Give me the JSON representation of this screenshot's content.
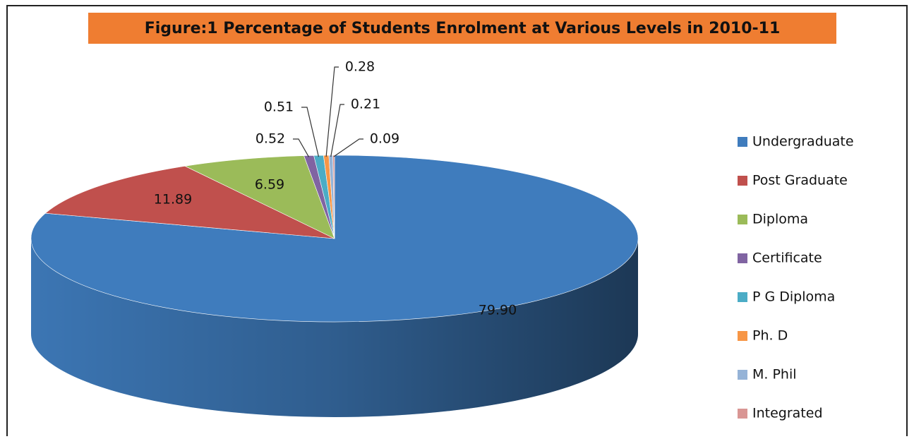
{
  "chart_data": {
    "type": "pie",
    "title": "Figure:1 Percentage of  Students Enrolment  at Various Levels  in 2010-11",
    "categories": [
      "Undergraduate",
      "Post Graduate",
      "Diploma",
      "Certificate",
      "P G Diploma",
      "Ph. D",
      "M. Phil",
      "Integrated"
    ],
    "values": [
      79.9,
      11.89,
      6.59,
      0.52,
      0.51,
      0.28,
      0.21,
      0.09
    ],
    "value_labels": [
      "79.90",
      "11.89",
      "6.59",
      "0.52",
      "0.51",
      "0.28",
      "0.21",
      "0.09"
    ],
    "colors": [
      "#3f7cbd",
      "#c0504d",
      "#9bbb59",
      "#8064a2",
      "#4bacc6",
      "#f79646",
      "#95b3d7",
      "#d99694"
    ],
    "legend": "right"
  }
}
